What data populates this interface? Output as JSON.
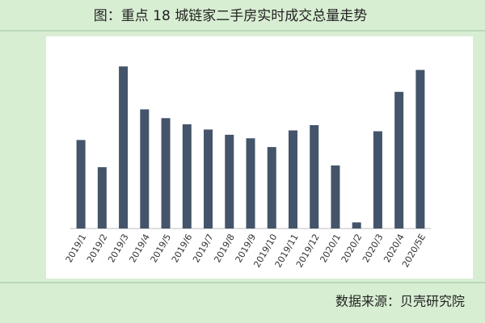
{
  "chart_data": {
    "type": "bar",
    "title": "图：重点 18 城链家二手房实时成交总量走势",
    "categories": [
      "2019/1",
      "2019/2",
      "2019/3",
      "2019/4",
      "2019/5",
      "2019/6",
      "2019/7",
      "2019/8",
      "2019/9",
      "2019/10",
      "2019/11",
      "2019/12",
      "2020/1",
      "2020/2",
      "2020/3",
      "2020/4",
      "2020/5E"
    ],
    "values": [
      101,
      70,
      185,
      136,
      126,
      119,
      113,
      107,
      103,
      93,
      112,
      118,
      72,
      7,
      111,
      156,
      181
    ],
    "color": "#44546a",
    "ylim": [
      0,
      200
    ],
    "source": "数据来源：贝壳研究院"
  }
}
